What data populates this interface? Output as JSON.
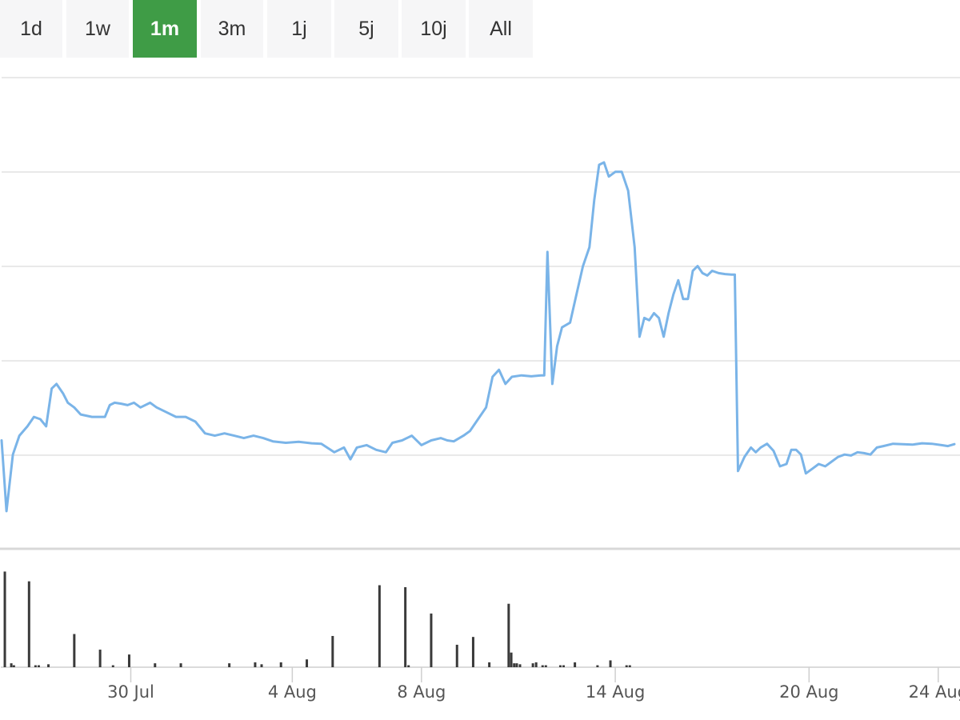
{
  "range_selector": {
    "buttons": [
      {
        "label": "1d",
        "active": false
      },
      {
        "label": "1w",
        "active": false
      },
      {
        "label": "1m",
        "active": true
      },
      {
        "label": "3m",
        "active": false
      },
      {
        "label": "1j",
        "active": false
      },
      {
        "label": "5j",
        "active": false
      },
      {
        "label": "10j",
        "active": false
      },
      {
        "label": "All",
        "active": false
      }
    ]
  },
  "colors": {
    "price_line": "#7ab4e8",
    "volume_bar": "#3a3a3a",
    "grid": "#e2e2e2",
    "active_button": "#3f9c46",
    "button_bg": "#f6f6f7"
  },
  "chart_data": {
    "type": "line",
    "title": "",
    "x_ticks": [
      "30 Jul",
      "4 Aug",
      "8 Aug",
      "14 Aug",
      "20 Aug",
      "24 Aug"
    ],
    "x_tick_days": [
      4,
      9,
      13,
      19,
      25,
      29
    ],
    "x_range_days": [
      0,
      29.5
    ],
    "y_axis_labels_shown": false,
    "grid": true,
    "price_series": {
      "name": "",
      "ylim": [
        0,
        100
      ],
      "points": [
        [
          0,
          23
        ],
        [
          0.15,
          8
        ],
        [
          0.35,
          20
        ],
        [
          0.55,
          24
        ],
        [
          0.8,
          26
        ],
        [
          1.0,
          28
        ],
        [
          1.2,
          27.5
        ],
        [
          1.38,
          26
        ],
        [
          1.55,
          34
        ],
        [
          1.7,
          35
        ],
        [
          1.9,
          33
        ],
        [
          2.05,
          31
        ],
        [
          2.25,
          30
        ],
        [
          2.45,
          28.5
        ],
        [
          2.8,
          28
        ],
        [
          3.2,
          28
        ],
        [
          3.35,
          30.5
        ],
        [
          3.5,
          31
        ],
        [
          3.7,
          30.8
        ],
        [
          3.9,
          30.5
        ],
        [
          4.1,
          31
        ],
        [
          4.3,
          30
        ],
        [
          4.6,
          31
        ],
        [
          4.8,
          30
        ],
        [
          5.1,
          29
        ],
        [
          5.4,
          28
        ],
        [
          5.7,
          28
        ],
        [
          6.0,
          27
        ],
        [
          6.3,
          24.5
        ],
        [
          6.6,
          24
        ],
        [
          6.9,
          24.5
        ],
        [
          7.2,
          24
        ],
        [
          7.5,
          23.5
        ],
        [
          7.8,
          24
        ],
        [
          8.1,
          23.5
        ],
        [
          8.4,
          22.8
        ],
        [
          8.8,
          22.5
        ],
        [
          9.2,
          22.7
        ],
        [
          9.6,
          22.4
        ],
        [
          9.9,
          22.3
        ],
        [
          10.3,
          20.5
        ],
        [
          10.6,
          21.5
        ],
        [
          10.8,
          19
        ],
        [
          11.0,
          21.5
        ],
        [
          11.3,
          22
        ],
        [
          11.6,
          21
        ],
        [
          11.9,
          20.5
        ],
        [
          12.1,
          22.5
        ],
        [
          12.4,
          23
        ],
        [
          12.7,
          24
        ],
        [
          13.0,
          22
        ],
        [
          13.3,
          23
        ],
        [
          13.6,
          23.5
        ],
        [
          13.8,
          23
        ],
        [
          14.0,
          22.8
        ],
        [
          14.3,
          24
        ],
        [
          14.5,
          25
        ],
        [
          14.8,
          28
        ],
        [
          15.0,
          30
        ],
        [
          15.2,
          36.5
        ],
        [
          15.4,
          38
        ],
        [
          15.6,
          35
        ],
        [
          15.8,
          36.5
        ],
        [
          16.1,
          36.8
        ],
        [
          16.4,
          36.6
        ],
        [
          16.7,
          36.8
        ],
        [
          16.8,
          36.8
        ],
        [
          16.9,
          63
        ],
        [
          17.05,
          35
        ],
        [
          17.2,
          43
        ],
        [
          17.35,
          47
        ],
        [
          17.6,
          48
        ],
        [
          17.8,
          54
        ],
        [
          18.0,
          60
        ],
        [
          18.2,
          64
        ],
        [
          18.35,
          74
        ],
        [
          18.5,
          81.5
        ],
        [
          18.65,
          82
        ],
        [
          18.8,
          79
        ],
        [
          19.0,
          80
        ],
        [
          19.2,
          80
        ],
        [
          19.4,
          76
        ],
        [
          19.6,
          64
        ],
        [
          19.75,
          45
        ],
        [
          19.9,
          49
        ],
        [
          20.05,
          48.5
        ],
        [
          20.2,
          50
        ],
        [
          20.35,
          49
        ],
        [
          20.5,
          45
        ],
        [
          20.65,
          50
        ],
        [
          20.8,
          54
        ],
        [
          20.95,
          57
        ],
        [
          21.1,
          53
        ],
        [
          21.25,
          53
        ],
        [
          21.4,
          59
        ],
        [
          21.55,
          60
        ],
        [
          21.7,
          58.5
        ],
        [
          21.85,
          58
        ],
        [
          22.0,
          59
        ],
        [
          22.2,
          58.5
        ],
        [
          22.4,
          58.3
        ],
        [
          22.6,
          58.2
        ],
        [
          22.7,
          58.2
        ],
        [
          22.8,
          16.5
        ],
        [
          23.0,
          19.5
        ],
        [
          23.2,
          21.5
        ],
        [
          23.35,
          20.5
        ],
        [
          23.5,
          21.5
        ],
        [
          23.7,
          22.3
        ],
        [
          23.9,
          20.8
        ],
        [
          24.1,
          17.5
        ],
        [
          24.3,
          18
        ],
        [
          24.45,
          21
        ],
        [
          24.6,
          21
        ],
        [
          24.75,
          20
        ],
        [
          24.9,
          16
        ],
        [
          25.1,
          17
        ],
        [
          25.3,
          18
        ],
        [
          25.5,
          17.5
        ],
        [
          25.7,
          18.5
        ],
        [
          25.9,
          19.5
        ],
        [
          26.1,
          20
        ],
        [
          26.3,
          19.8
        ],
        [
          26.5,
          20.5
        ],
        [
          26.7,
          20.3
        ],
        [
          26.9,
          20
        ],
        [
          27.1,
          21.5
        ],
        [
          27.3,
          21.8
        ],
        [
          27.6,
          22.3
        ],
        [
          27.9,
          22.2
        ],
        [
          28.2,
          22.1
        ],
        [
          28.5,
          22.4
        ],
        [
          28.8,
          22.3
        ],
        [
          29.1,
          22
        ],
        [
          29.3,
          21.8
        ],
        [
          29.5,
          22.2
        ]
      ]
    },
    "volume_series": {
      "name": "",
      "ylim": [
        0,
        100
      ],
      "bars": [
        [
          0.1,
          98
        ],
        [
          0.3,
          4
        ],
        [
          0.38,
          2
        ],
        [
          0.85,
          88
        ],
        [
          1.05,
          2
        ],
        [
          1.15,
          2
        ],
        [
          1.45,
          3
        ],
        [
          2.25,
          34
        ],
        [
          3.05,
          18
        ],
        [
          3.45,
          2
        ],
        [
          3.95,
          13
        ],
        [
          4.75,
          4
        ],
        [
          5.55,
          4
        ],
        [
          7.05,
          4
        ],
        [
          7.85,
          5
        ],
        [
          8.05,
          3
        ],
        [
          8.65,
          5
        ],
        [
          9.45,
          8
        ],
        [
          10.25,
          32
        ],
        [
          11.7,
          84
        ],
        [
          12.5,
          82
        ],
        [
          12.6,
          2
        ],
        [
          13.3,
          55
        ],
        [
          14.1,
          23
        ],
        [
          14.6,
          31
        ],
        [
          15.1,
          5
        ],
        [
          15.7,
          65
        ],
        [
          15.78,
          15
        ],
        [
          15.87,
          4
        ],
        [
          15.95,
          4
        ],
        [
          16.05,
          3
        ],
        [
          16.45,
          4
        ],
        [
          16.55,
          5
        ],
        [
          16.75,
          2
        ],
        [
          16.85,
          2
        ],
        [
          17.3,
          2
        ],
        [
          17.4,
          2
        ],
        [
          17.75,
          5
        ],
        [
          18.45,
          2
        ],
        [
          18.85,
          7
        ],
        [
          19.35,
          2
        ],
        [
          19.45,
          2
        ]
      ]
    }
  }
}
